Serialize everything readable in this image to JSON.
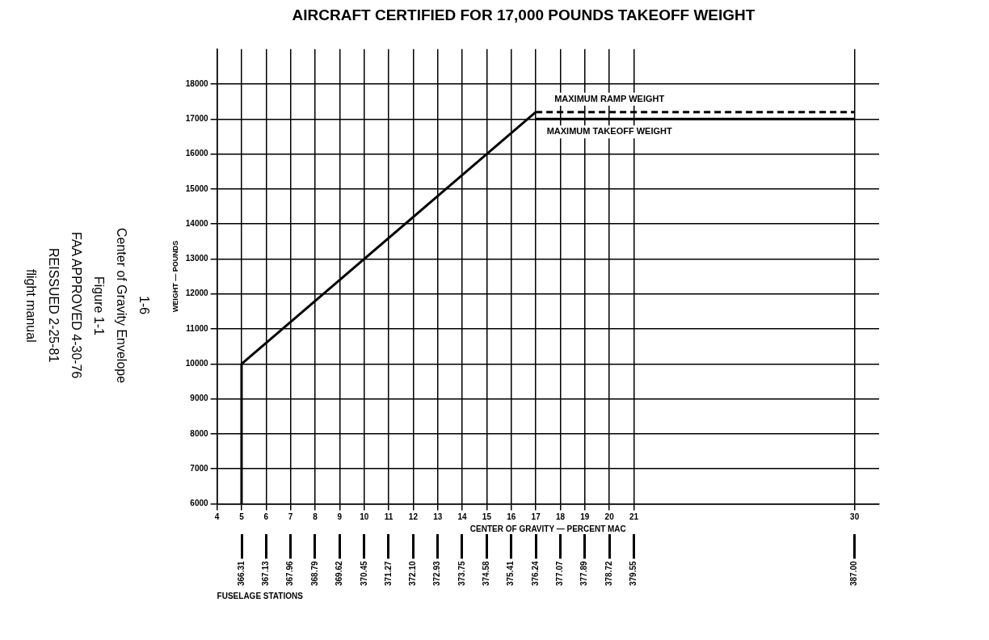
{
  "chart_data": {
    "type": "line",
    "title": "AIRCRAFT CERTIFIED FOR 17,000 POUNDS TAKEOFF WEIGHT",
    "xlabel": "CENTER OF GRAVITY — PERCENT MAC",
    "ylabel": "WEIGHT — POUNDS",
    "x2label": "FUSELAGE STATIONS",
    "xlim": [
      4,
      31
    ],
    "xticks": [
      4,
      5,
      6,
      7,
      8,
      9,
      10,
      11,
      12,
      13,
      14,
      15,
      16,
      17,
      18,
      19,
      20,
      21,
      30
    ],
    "x2lim": [
      365.48,
      387.83
    ],
    "x2ticks": [
      366.31,
      367.13,
      367.96,
      368.79,
      369.62,
      370.45,
      371.27,
      {
        "value": 372.1,
        "label": "372.10"
      },
      372.93,
      373.75,
      374.58,
      375.41,
      376.24,
      377.07,
      377.89,
      378.72,
      379.55,
      {
        "value": 387,
        "label": "387.00"
      }
    ],
    "ylim": [
      6000,
      19000
    ],
    "yticks": [
      6000,
      7000,
      8000,
      9000,
      10000,
      11000,
      12000,
      13000,
      14000,
      15000,
      16000,
      17000,
      18000
    ],
    "grid": true,
    "marker": "none",
    "series": [
      {
        "color": "#000000",
        "x": [
          5,
          5,
          17
        ],
        "values": [
          6000,
          10000,
          17200
        ],
        "line_style": "solid"
      },
      {
        "color": "#000000",
        "x": [
          17,
          30
        ],
        "values": [
          17200,
          17200
        ],
        "line_style": "dashed"
      },
      {
        "color": "#000000",
        "x": [
          17,
          30
        ],
        "values": [
          17000,
          17000
        ],
        "line_style": "solid"
      }
    ],
    "annotations": [
      {
        "text": "MAXIMUM RAMP WEIGHT",
        "x": 20,
        "y": 17200
      },
      {
        "text": "MAXIMUM TAKEOFF WEIGHT",
        "x": 20,
        "y": 17000
      },
      "1-6",
      "Center of Gravity Envelope",
      "Figure 1-1",
      "FAA APPROVED 4-30-76",
      "REISSUED 2-25-81",
      "flight manual"
    ]
  }
}
